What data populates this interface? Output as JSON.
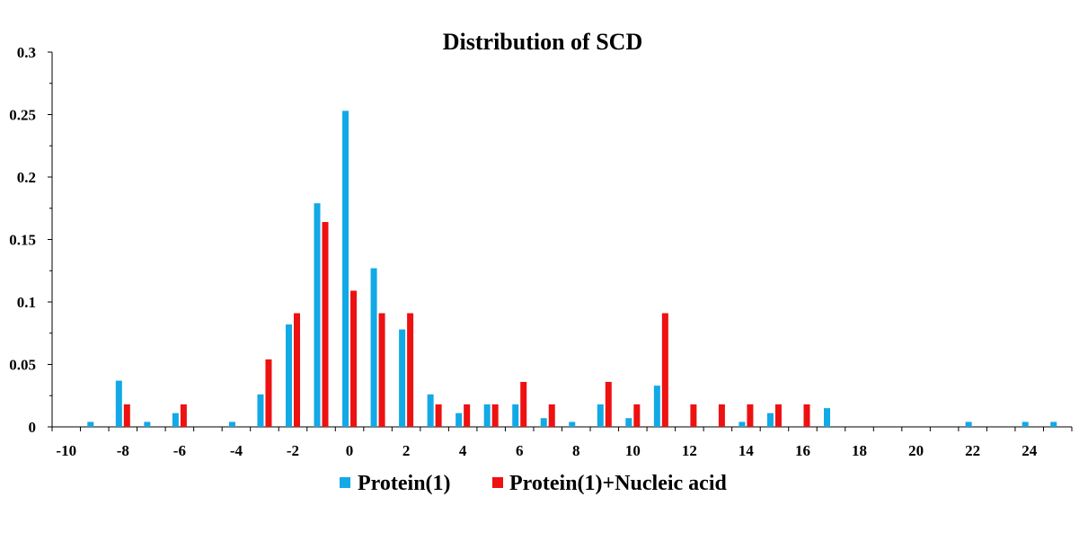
{
  "chart_data": {
    "type": "bar",
    "title": "Distribution of  SCD",
    "xlabel": "",
    "ylabel": "",
    "xlim": [
      -10,
      25
    ],
    "ylim": [
      0,
      0.3
    ],
    "x_ticks": [
      -10,
      -8,
      -6,
      -4,
      -2,
      0,
      2,
      4,
      6,
      8,
      10,
      12,
      14,
      16,
      18,
      20,
      22,
      24
    ],
    "x_tick_labels": [
      "-10",
      "-8",
      "-6",
      "-4",
      "-2",
      "0",
      "2",
      "4",
      "6",
      "8",
      "10",
      "12",
      "14",
      "16",
      "18",
      "20",
      "22",
      "24"
    ],
    "y_ticks": [
      0,
      0.05,
      0.1,
      0.15,
      0.2,
      0.25,
      0.3
    ],
    "y_tick_labels": [
      "0",
      "0.05",
      "0.1",
      "0.15",
      "0.2",
      "0.25",
      "0.3"
    ],
    "grid": false,
    "legend_position": "bottom",
    "series": [
      {
        "name": "Protein(1)",
        "color": "#12a9e6",
        "points": [
          {
            "x": -9,
            "y": 0.004
          },
          {
            "x": -8,
            "y": 0.037
          },
          {
            "x": -7,
            "y": 0.004
          },
          {
            "x": -6,
            "y": 0.011
          },
          {
            "x": -4,
            "y": 0.004
          },
          {
            "x": -3,
            "y": 0.026
          },
          {
            "x": -2,
            "y": 0.082
          },
          {
            "x": -1,
            "y": 0.179
          },
          {
            "x": 0,
            "y": 0.253
          },
          {
            "x": 1,
            "y": 0.127
          },
          {
            "x": 2,
            "y": 0.078
          },
          {
            "x": 3,
            "y": 0.026
          },
          {
            "x": 4,
            "y": 0.011
          },
          {
            "x": 5,
            "y": 0.018
          },
          {
            "x": 6,
            "y": 0.018
          },
          {
            "x": 7,
            "y": 0.007
          },
          {
            "x": 8,
            "y": 0.004
          },
          {
            "x": 9,
            "y": 0.018
          },
          {
            "x": 10,
            "y": 0.007
          },
          {
            "x": 11,
            "y": 0.033
          },
          {
            "x": 14,
            "y": 0.004
          },
          {
            "x": 15,
            "y": 0.011
          },
          {
            "x": 17,
            "y": 0.015
          },
          {
            "x": 22,
            "y": 0.004
          },
          {
            "x": 24,
            "y": 0.004
          },
          {
            "x": 25,
            "y": 0.004
          }
        ]
      },
      {
        "name": "Protein(1)+Nucleic acid",
        "color": "#ee1111",
        "points": [
          {
            "x": -8,
            "y": 0.018
          },
          {
            "x": -6,
            "y": 0.018
          },
          {
            "x": -3,
            "y": 0.054
          },
          {
            "x": -2,
            "y": 0.091
          },
          {
            "x": -1,
            "y": 0.164
          },
          {
            "x": 0,
            "y": 0.109
          },
          {
            "x": 1,
            "y": 0.091
          },
          {
            "x": 2,
            "y": 0.091
          },
          {
            "x": 3,
            "y": 0.018
          },
          {
            "x": 4,
            "y": 0.018
          },
          {
            "x": 5,
            "y": 0.018
          },
          {
            "x": 6,
            "y": 0.036
          },
          {
            "x": 7,
            "y": 0.018
          },
          {
            "x": 9,
            "y": 0.036
          },
          {
            "x": 10,
            "y": 0.018
          },
          {
            "x": 11,
            "y": 0.091
          },
          {
            "x": 12,
            "y": 0.018
          },
          {
            "x": 13,
            "y": 0.018
          },
          {
            "x": 14,
            "y": 0.018
          },
          {
            "x": 15,
            "y": 0.018
          },
          {
            "x": 16,
            "y": 0.018
          }
        ]
      }
    ]
  }
}
